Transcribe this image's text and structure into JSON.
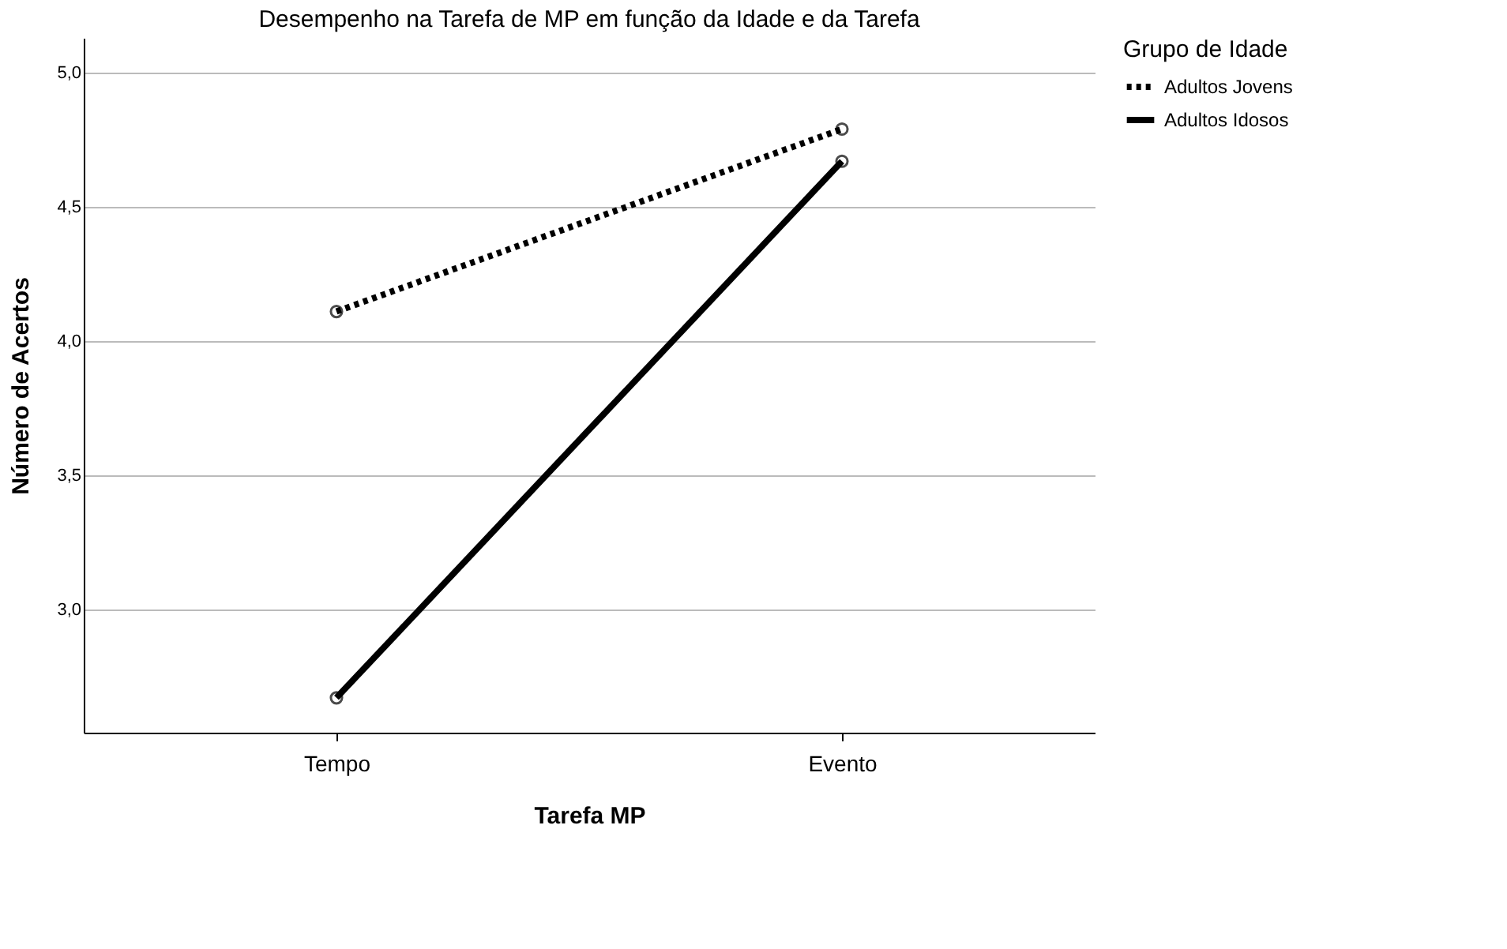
{
  "chart_data": {
    "type": "line",
    "title": "Desempenho na Tarefa de MP em função da Idade e da Tarefa",
    "xlabel": "Tarefa MP",
    "ylabel": "Número de Acertos",
    "legend_title": "Grupo de Idade",
    "categories": [
      "Tempo",
      "Evento"
    ],
    "series": [
      {
        "name": "Adultos Jovens",
        "color": "#000000",
        "line_style": "dotted",
        "values": [
          4.11,
          4.79
        ]
      },
      {
        "name": "Adultos Idosos",
        "color": "#000000",
        "line_style": "solid",
        "values": [
          2.67,
          4.67
        ]
      }
    ],
    "ylim": [
      2.54,
      5.13
    ],
    "yticks": [
      {
        "value": 3.0,
        "label": "3,0"
      },
      {
        "value": 3.5,
        "label": "3,5"
      },
      {
        "value": 4.0,
        "label": "4,0"
      },
      {
        "value": 4.5,
        "label": "4,5"
      },
      {
        "value": 5.0,
        "label": "5,0"
      }
    ],
    "grid": "y",
    "legend": "top right",
    "marker": "circle"
  }
}
